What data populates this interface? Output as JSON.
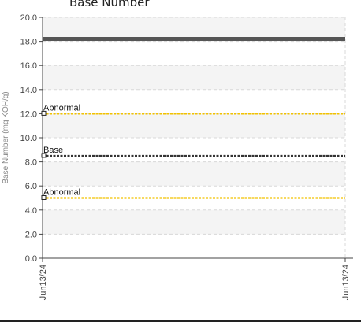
{
  "chart_data": {
    "type": "line",
    "title": "Base Number",
    "ylabel": "Base Number (mg KOH/g)",
    "xlabel": "",
    "ylim": [
      0,
      20
    ],
    "y_ticks": [
      "0.0",
      "2.0",
      "4.0",
      "6.0",
      "8.0",
      "10.0",
      "12.0",
      "14.0",
      "16.0",
      "18.0",
      "20.0"
    ],
    "x_ticks": [
      "Jun13/24",
      "Jun13/24"
    ],
    "grid": true,
    "banded_background": true,
    "series": [
      {
        "values": [
          18.2
        ],
        "color": "#555555"
      }
    ],
    "reference_lines": [
      {
        "label": "Abnormal",
        "value": 12.0,
        "color": "#f2c200",
        "style": "dashed"
      },
      {
        "label": "Base",
        "value": 8.5,
        "color": "#333333",
        "style": "dashed"
      },
      {
        "label": "Abnormal",
        "value": 5.0,
        "color": "#f2c200",
        "style": "dashed"
      }
    ]
  }
}
